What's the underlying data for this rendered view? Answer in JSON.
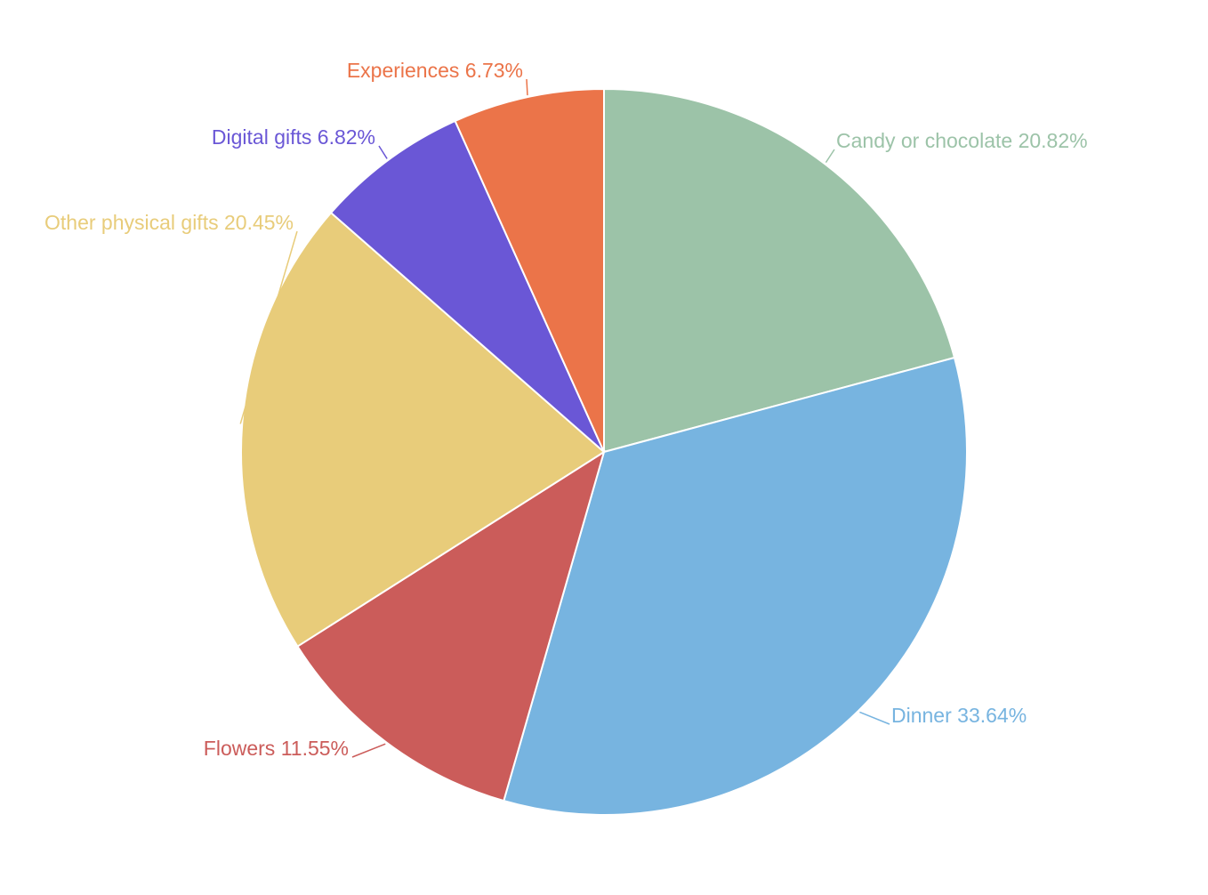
{
  "chart_data": {
    "type": "pie",
    "categories": [
      "Candy or chocolate",
      "Dinner",
      "Flowers",
      "Other physical gifts",
      "Digital gifts",
      "Experiences"
    ],
    "values": [
      20.82,
      33.64,
      11.55,
      20.45,
      6.82,
      6.73
    ],
    "value_labels": [
      "20.82%",
      "33.64%",
      "11.55%",
      "20.45%",
      "6.82%",
      "6.73%"
    ],
    "colors": [
      "#9cc3a8",
      "#77b4e0",
      "#cb5c5a",
      "#e8cc7a",
      "#6a57d6",
      "#eb7449"
    ]
  }
}
